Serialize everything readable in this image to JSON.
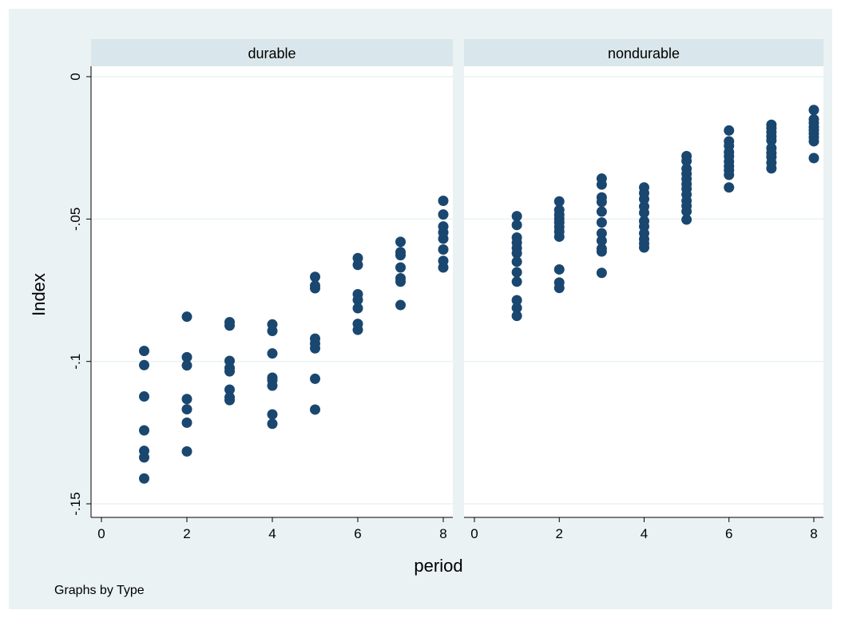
{
  "chart_data": {
    "type": "scatter",
    "ylabel": "Index",
    "xlabel": "period",
    "note": "Graphs by Type",
    "xlim": [
      0,
      8
    ],
    "ylim": [
      -0.15,
      0
    ],
    "x_ticks": [
      0,
      2,
      4,
      6,
      8
    ],
    "y_ticks": [
      0,
      -0.05,
      -0.1,
      -0.15
    ],
    "y_tick_labels": [
      "0",
      "-.05",
      "-.1",
      "-.15"
    ],
    "grid": true,
    "marker_color": "#1a476f",
    "strip_color": "#d9e6eb",
    "panels": [
      {
        "label": "durable",
        "points": [
          [
            1,
            -0.0963
          ],
          [
            1,
            -0.1013
          ],
          [
            1,
            -0.1123
          ],
          [
            1,
            -0.1242
          ],
          [
            1,
            -0.1314
          ],
          [
            1,
            -0.1337
          ],
          [
            1,
            -0.1411
          ],
          [
            2,
            -0.0843
          ],
          [
            2,
            -0.0985
          ],
          [
            2,
            -0.1014
          ],
          [
            2,
            -0.1132
          ],
          [
            2,
            -0.1168
          ],
          [
            2,
            -0.1215
          ],
          [
            2,
            -0.1316
          ],
          [
            3,
            -0.0862
          ],
          [
            3,
            -0.0874
          ],
          [
            3,
            -0.0998
          ],
          [
            3,
            -0.1023
          ],
          [
            3,
            -0.1035
          ],
          [
            3,
            -0.1099
          ],
          [
            3,
            -0.1126
          ],
          [
            3,
            -0.1136
          ],
          [
            4,
            -0.087
          ],
          [
            4,
            -0.0893
          ],
          [
            4,
            -0.0972
          ],
          [
            4,
            -0.1057
          ],
          [
            4,
            -0.1066
          ],
          [
            4,
            -0.1085
          ],
          [
            4,
            -0.1186
          ],
          [
            4,
            -0.1219
          ],
          [
            5,
            -0.0703
          ],
          [
            5,
            -0.0734
          ],
          [
            5,
            -0.0743
          ],
          [
            5,
            -0.092
          ],
          [
            5,
            -0.0937
          ],
          [
            5,
            -0.0954
          ],
          [
            5,
            -0.1061
          ],
          [
            5,
            -0.1169
          ],
          [
            6,
            -0.0637
          ],
          [
            6,
            -0.0661
          ],
          [
            6,
            -0.0764
          ],
          [
            6,
            -0.0784
          ],
          [
            6,
            -0.0813
          ],
          [
            6,
            -0.0868
          ],
          [
            6,
            -0.0889
          ],
          [
            7,
            -0.058
          ],
          [
            7,
            -0.0616
          ],
          [
            7,
            -0.0627
          ],
          [
            7,
            -0.067
          ],
          [
            7,
            -0.0708
          ],
          [
            7,
            -0.072
          ],
          [
            7,
            -0.0802
          ],
          [
            8,
            -0.0436
          ],
          [
            8,
            -0.0484
          ],
          [
            8,
            -0.0526
          ],
          [
            8,
            -0.0547
          ],
          [
            8,
            -0.0569
          ],
          [
            8,
            -0.0607
          ],
          [
            8,
            -0.0647
          ],
          [
            8,
            -0.067
          ]
        ]
      },
      {
        "label": "nondurable",
        "points": [
          [
            1,
            -0.049
          ],
          [
            1,
            -0.0521
          ],
          [
            1,
            -0.0565
          ],
          [
            1,
            -0.0583
          ],
          [
            1,
            -0.0602
          ],
          [
            1,
            -0.062
          ],
          [
            1,
            -0.065
          ],
          [
            1,
            -0.0687
          ],
          [
            1,
            -0.072
          ],
          [
            1,
            -0.0785
          ],
          [
            1,
            -0.0812
          ],
          [
            1,
            -0.084
          ],
          [
            2,
            -0.0438
          ],
          [
            2,
            -0.0468
          ],
          [
            2,
            -0.0485
          ],
          [
            2,
            -0.0499
          ],
          [
            2,
            -0.0512
          ],
          [
            2,
            -0.0528
          ],
          [
            2,
            -0.0544
          ],
          [
            2,
            -0.0562
          ],
          [
            2,
            -0.0677
          ],
          [
            2,
            -0.0723
          ],
          [
            2,
            -0.0742
          ],
          [
            3,
            -0.0358
          ],
          [
            3,
            -0.0379
          ],
          [
            3,
            -0.0424
          ],
          [
            3,
            -0.044
          ],
          [
            3,
            -0.0474
          ],
          [
            3,
            -0.0512
          ],
          [
            3,
            -0.055
          ],
          [
            3,
            -0.0576
          ],
          [
            3,
            -0.0604
          ],
          [
            3,
            -0.0614
          ],
          [
            3,
            -0.0689
          ],
          [
            4,
            -0.0389
          ],
          [
            4,
            -0.0409
          ],
          [
            4,
            -0.043
          ],
          [
            4,
            -0.0456
          ],
          [
            4,
            -0.0478
          ],
          [
            4,
            -0.0507
          ],
          [
            4,
            -0.0526
          ],
          [
            4,
            -0.055
          ],
          [
            4,
            -0.0571
          ],
          [
            4,
            -0.0586
          ],
          [
            4,
            -0.06
          ],
          [
            5,
            -0.0279
          ],
          [
            5,
            -0.0296
          ],
          [
            5,
            -0.0323
          ],
          [
            5,
            -0.0341
          ],
          [
            5,
            -0.0359
          ],
          [
            5,
            -0.0377
          ],
          [
            5,
            -0.0394
          ],
          [
            5,
            -0.0414
          ],
          [
            5,
            -0.0436
          ],
          [
            5,
            -0.0454
          ],
          [
            5,
            -0.0473
          ],
          [
            5,
            -0.0502
          ],
          [
            6,
            -0.0189
          ],
          [
            6,
            -0.0227
          ],
          [
            6,
            -0.0243
          ],
          [
            6,
            -0.0265
          ],
          [
            6,
            -0.028
          ],
          [
            6,
            -0.0298
          ],
          [
            6,
            -0.0314
          ],
          [
            6,
            -0.0329
          ],
          [
            6,
            -0.0345
          ],
          [
            6,
            -0.0389
          ],
          [
            7,
            -0.0169
          ],
          [
            7,
            -0.0181
          ],
          [
            7,
            -0.0195
          ],
          [
            7,
            -0.021
          ],
          [
            7,
            -0.0224
          ],
          [
            7,
            -0.0251
          ],
          [
            7,
            -0.0268
          ],
          [
            7,
            -0.0282
          ],
          [
            7,
            -0.0302
          ],
          [
            7,
            -0.0322
          ],
          [
            8,
            -0.0117
          ],
          [
            8,
            -0.015
          ],
          [
            8,
            -0.0163
          ],
          [
            8,
            -0.0177
          ],
          [
            8,
            -0.0188
          ],
          [
            8,
            -0.02
          ],
          [
            8,
            -0.0213
          ],
          [
            8,
            -0.0227
          ],
          [
            8,
            -0.0286
          ]
        ]
      }
    ]
  }
}
